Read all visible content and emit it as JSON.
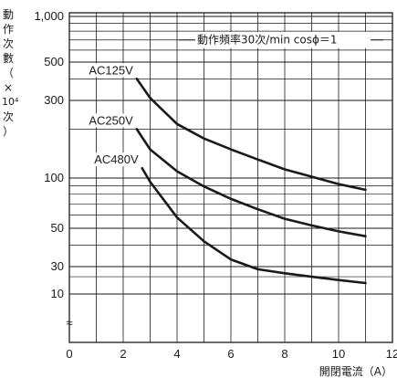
{
  "chart_data": {
    "type": "line",
    "title": "",
    "xlabel": "開閉電流（A）",
    "ylabel_chars": [
      "動",
      "作",
      "次",
      "數",
      "（",
      "×",
      "10⁴",
      "次",
      "）"
    ],
    "xlim": [
      0,
      12
    ],
    "x_ticks": [
      0,
      2,
      4,
      6,
      8,
      10,
      12
    ],
    "y_ticks": [
      10,
      30,
      50,
      100,
      300,
      500,
      1000
    ],
    "y_tick_labels": [
      "10",
      "30",
      "50",
      "100",
      "300",
      "500",
      "1,000"
    ],
    "y_scale": "log-with-break",
    "axis_break_symbol": "≈",
    "grid": true,
    "annotation": "動作頻率30次/min cosϕ＝1",
    "series": [
      {
        "name": "AC125V",
        "x": [
          2.5,
          3,
          4,
          5,
          6,
          7,
          8,
          9,
          10,
          11
        ],
        "y": [
          400,
          310,
          215,
          175,
          150,
          130,
          113,
          102,
          92,
          85
        ]
      },
      {
        "name": "AC250V",
        "x": [
          2.5,
          3,
          4,
          5,
          6,
          7,
          8,
          9,
          10,
          11
        ],
        "y": [
          200,
          150,
          110,
          89,
          75,
          65,
          57,
          52,
          48,
          45
        ]
      },
      {
        "name": "AC480V",
        "x": [
          2.7,
          3,
          4,
          5,
          6,
          7,
          8,
          9,
          10,
          11
        ],
        "y": [
          115,
          95,
          58,
          42,
          33,
          27,
          23,
          20,
          17.5,
          15.5
        ]
      }
    ]
  }
}
